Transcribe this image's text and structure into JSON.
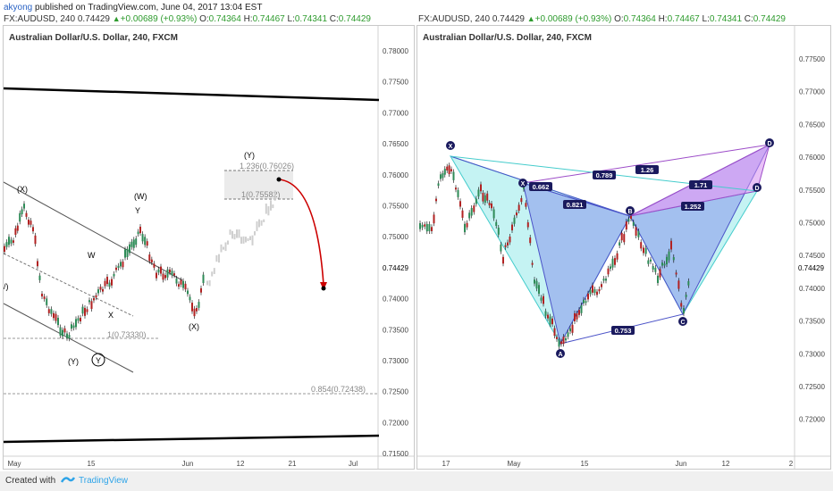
{
  "published": {
    "user": "akyong",
    "rest": "published on TradingView.com, June 04, 2017 13:04 EST"
  },
  "left_header": {
    "symbol": "FX:AUDUSD, 240",
    "last": "0.74429",
    "change": "+0.00689 (+0.93%)",
    "o_label": "O:",
    "o": "0.74364",
    "h_label": "H:",
    "h": "0.74467",
    "l_label": "L:",
    "l": "0.74341",
    "c_label": "C:",
    "c": "0.74429"
  },
  "right_header": {
    "symbol": "FX:AUDUSD, 240",
    "last": "0.74429",
    "change": "+0.00689 (+0.93%)",
    "o_label": "O:",
    "o": "0.74364",
    "h_label": "H:",
    "h": "0.74467",
    "l_label": "L:",
    "l": "0.74341",
    "c_label": "C:",
    "c": "0.74429"
  },
  "left_chart": {
    "title": "Australian Dollar/U.S. Dollar, 240, FXCM",
    "price_labels": [
      "0.78000",
      "0.77500",
      "0.77000",
      "0.76500",
      "0.76000",
      "0.75500",
      "0.75000",
      "0.74500",
      "0.74000",
      "0.73500",
      "0.73000",
      "0.72500",
      "0.72000",
      "0.71500"
    ],
    "current_price": "0.74429",
    "date_labels": [
      "May",
      "15",
      "Jun",
      "12",
      "21",
      "Jul"
    ],
    "fib_levels": [
      {
        "label": "1.236(0.76026)"
      },
      {
        "label": "1(0.75582)"
      },
      {
        "label": "1(0.73330)"
      },
      {
        "label": "0.854(0.72438)"
      }
    ],
    "wave_labels": [
      "(X)",
      "W",
      "X",
      "(Y)",
      "(W)",
      "Y",
      "(X)",
      "(Y)"
    ],
    "circled_label": "Y",
    "left_cut_label": "/)"
  },
  "right_chart": {
    "title": "Australian Dollar/U.S. Dollar, 240, FXCM",
    "price_labels": [
      "0.77500",
      "0.77000",
      "0.76500",
      "0.76000",
      "0.75500",
      "0.75000",
      "0.74500",
      "0.74000",
      "0.73500",
      "0.73000",
      "0.72500",
      "0.72000"
    ],
    "current_price": "0.74429",
    "date_labels": [
      "17",
      "May",
      "15",
      "Jun",
      "12",
      "2"
    ],
    "points": [
      "X",
      "X",
      "A",
      "B",
      "C",
      "D",
      "D"
    ],
    "ratios": [
      "0.662",
      "0.789",
      "1.26",
      "0.821",
      "1.71",
      "1.252",
      "0.753"
    ]
  },
  "footer": {
    "prefix": "Created with",
    "brand": "TradingView"
  },
  "colors": {
    "up": "#2e9b2e",
    "bullish_candle": "#2e8b57",
    "bearish_candle": "#b22222",
    "harmonic_blue": "#7b83eb",
    "harmonic_cyan": "#7fe5e5",
    "harmonic_violet": "#d58ef0",
    "projection": "#cc0000",
    "ghost_candles": "#cfcfcf",
    "label_box": "#1a1a5e"
  }
}
